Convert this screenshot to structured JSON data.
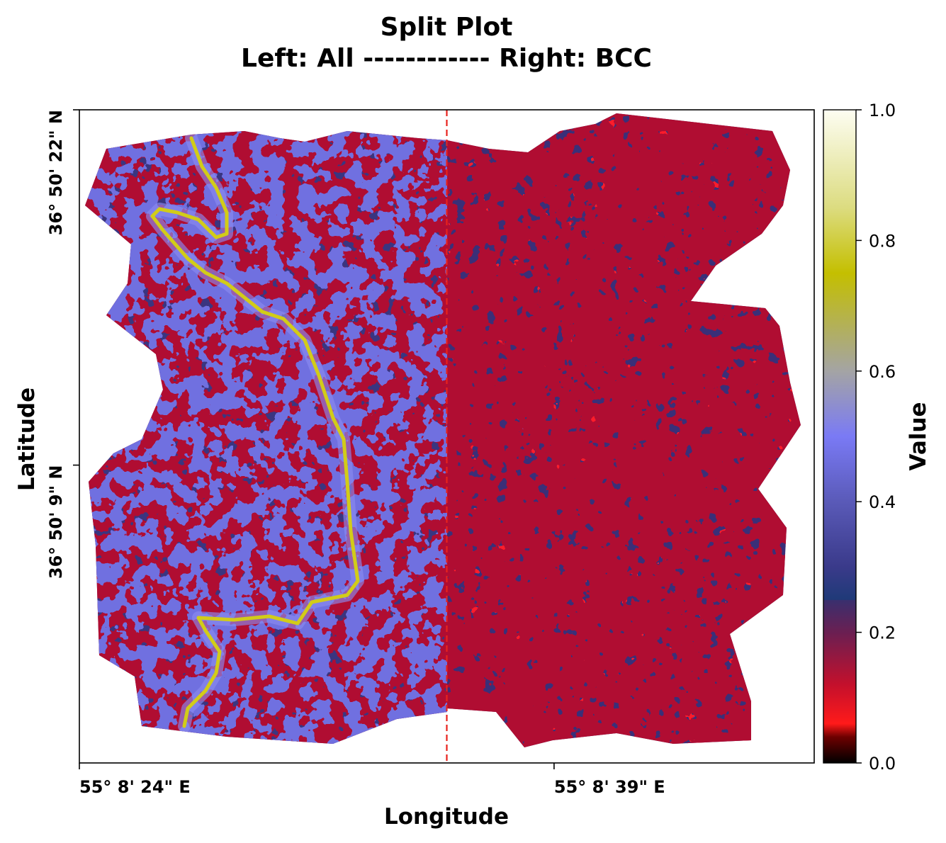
{
  "chart_data": {
    "type": "heatmap",
    "title_line1": "Split Plot",
    "title_line2": "Left: All ------------ Right: BCC",
    "xlabel": "Longitude",
    "ylabel": "Latitude",
    "x_ticks": [
      {
        "label": "55° 8' 24\" E",
        "frac": 0.0
      },
      {
        "label": "55° 8' 39\" E",
        "frac": 0.646
      }
    ],
    "y_ticks": [
      {
        "label": "36° 50' 22\" N",
        "frac": 0.0
      },
      {
        "label": "36° 50' 9\" N",
        "frac": 0.544
      }
    ],
    "split_line_frac": 0.5,
    "left_panel": "All",
    "right_panel": "BCC",
    "colorbar": {
      "label": "Value",
      "range": [
        0.0,
        1.0
      ],
      "ticks": [
        "0.0",
        "0.2",
        "0.4",
        "0.6",
        "0.8",
        "1.0"
      ],
      "tick_values": [
        0.0,
        0.2,
        0.4,
        0.6,
        0.8,
        1.0
      ],
      "stops": [
        {
          "v": 0.0,
          "c": "#000000"
        },
        {
          "v": 0.04,
          "c": "#6e0000"
        },
        {
          "v": 0.06,
          "c": "#ff1a1a"
        },
        {
          "v": 0.12,
          "c": "#c4102c"
        },
        {
          "v": 0.2,
          "c": "#6a1f52"
        },
        {
          "v": 0.249,
          "c": "#3a2f6e"
        },
        {
          "v": 0.25,
          "c": "#1f3a78"
        },
        {
          "v": 0.3,
          "c": "#3a3a8a"
        },
        {
          "v": 0.4,
          "c": "#5a5ab8"
        },
        {
          "v": 0.5,
          "c": "#7a7af5"
        },
        {
          "v": 0.6,
          "c": "#a4a4a4"
        },
        {
          "v": 0.75,
          "c": "#c4bf00"
        },
        {
          "v": 0.85,
          "c": "#dcdc80"
        },
        {
          "v": 1.0,
          "c": "#fdfdf2"
        }
      ]
    },
    "colors": {
      "split_line": "#e8221d",
      "track": "#d2cc18",
      "track_halo": "#8a8af0"
    }
  }
}
